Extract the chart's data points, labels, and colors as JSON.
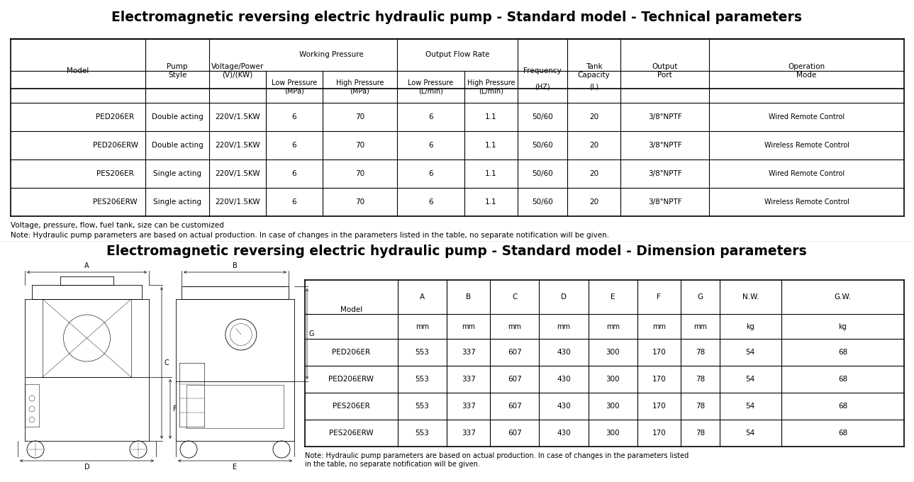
{
  "title1": "Electromagnetic reversing electric hydraulic pump - Standard model - Technical parameters",
  "title2": "Electromagnetic reversing electric hydraulic pump - Standard model - Dimension parameters",
  "tech_data": [
    [
      "PED206ER",
      "Double acting",
      "220V/1.5KW",
      "6",
      "70",
      "6",
      "1.1",
      "50/60",
      "20",
      "3/8\"NPTF",
      "Wired Remote Control"
    ],
    [
      "PED206ERW",
      "Double acting",
      "220V/1.5KW",
      "6",
      "70",
      "6",
      "1.1",
      "50/60",
      "20",
      "3/8\"NPTF",
      "Wireless Remote Control"
    ],
    [
      "PES206ER",
      "Single acting",
      "220V/1.5KW",
      "6",
      "70",
      "6",
      "1.1",
      "50/60",
      "20",
      "3/8\"NPTF",
      "Wired Remote Control"
    ],
    [
      "PES206ERW",
      "Single acting",
      "220V/1.5KW",
      "6",
      "70",
      "6",
      "1.1",
      "50/60",
      "20",
      "3/8\"NPTF",
      "Wireless Remote Control"
    ]
  ],
  "note1": "Voltage, pressure, flow, fuel tank, size can be customized",
  "note2": "Note: Hydraulic pump parameters are based on actual production. In case of changes in the parameters listed in the table, no separate notification will be given.",
  "dim_headers_r1": [
    "Model",
    "A",
    "B",
    "C",
    "D",
    "E",
    "F",
    "G",
    "N.W.",
    "G.W."
  ],
  "dim_headers_r2": [
    "",
    "mm",
    "mm",
    "mm",
    "mm",
    "mm",
    "mm",
    "mm",
    "kg",
    "kg"
  ],
  "dim_data": [
    [
      "PED206ER",
      "553",
      "337",
      "607",
      "430",
      "300",
      "170",
      "78",
      "54",
      "68"
    ],
    [
      "PED206ERW",
      "553",
      "337",
      "607",
      "430",
      "300",
      "170",
      "78",
      "54",
      "68"
    ],
    [
      "PES206ER",
      "553",
      "337",
      "607",
      "430",
      "300",
      "170",
      "78",
      "54",
      "68"
    ],
    [
      "PES206ERW",
      "553",
      "337",
      "607",
      "430",
      "300",
      "170",
      "78",
      "54",
      "68"
    ]
  ],
  "dim_note": "Note: Hydraulic pump parameters are based on actual production. In case of changes in the parameters listed\nin the table, no separate notification will be given.",
  "bg_color": "#ffffff",
  "text_color": "#000000",
  "line_color": "#000000",
  "title_fontsize": 13.5,
  "table_fontsize": 7.5
}
